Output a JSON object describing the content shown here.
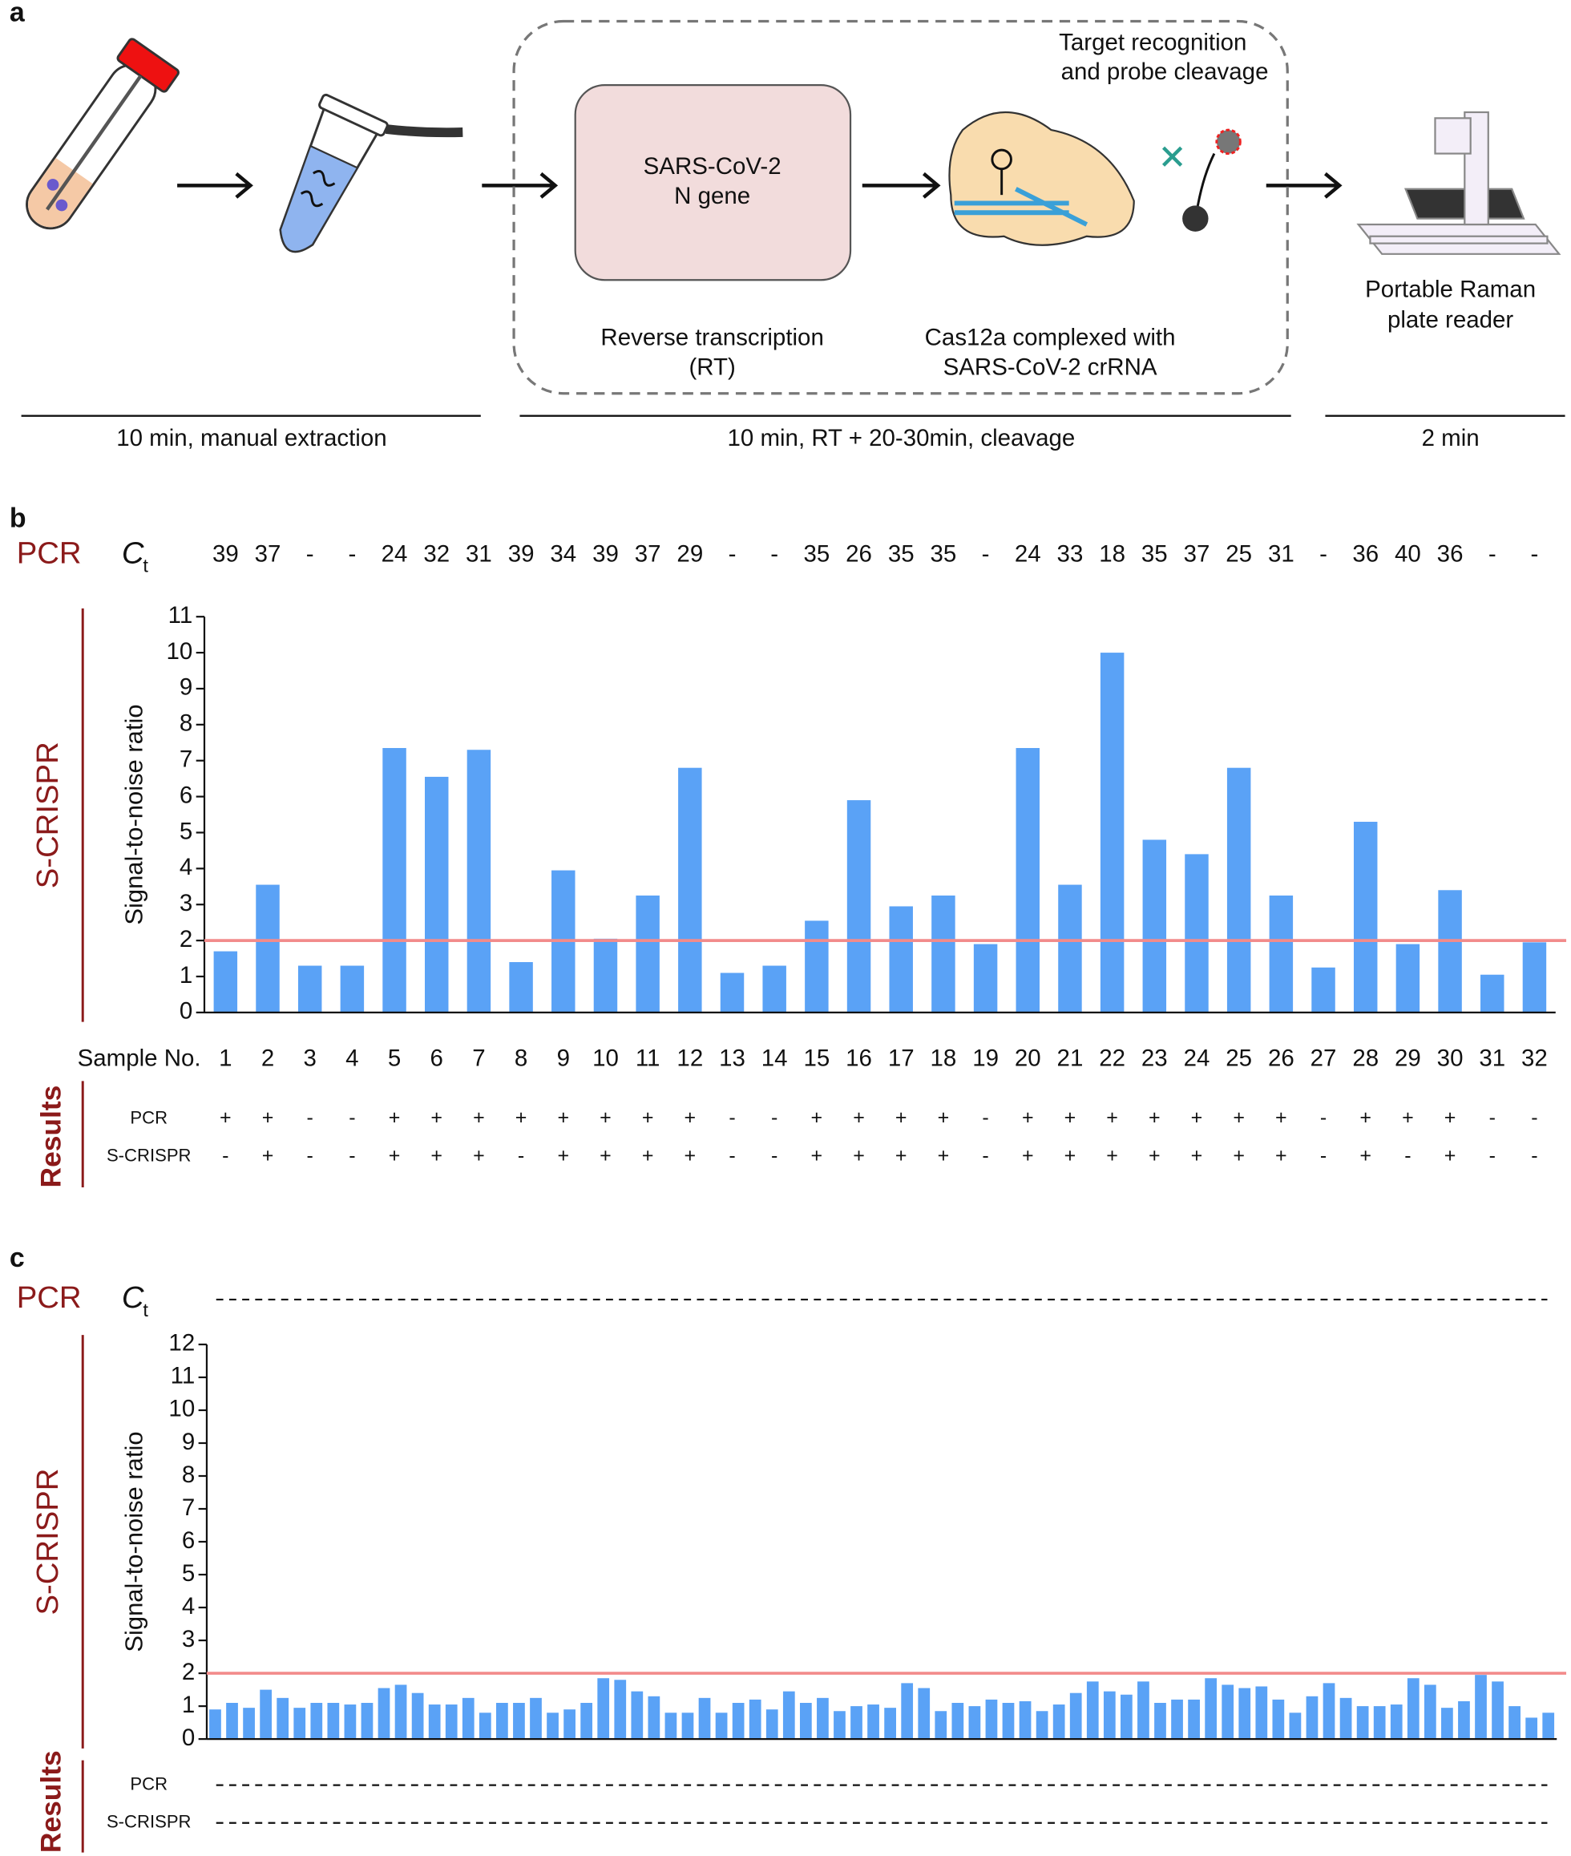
{
  "panel_a": {
    "label": "a",
    "box_text": [
      "SARS-CoV-2",
      "N gene"
    ],
    "top_note": [
      "Target recognition",
      "and probe cleavage"
    ],
    "rt_caption": [
      "Reverse transcription",
      "(RT)"
    ],
    "cas_caption": [
      "Cas12a complexed with",
      "SARS-CoV-2 crRNA"
    ],
    "reader_caption": [
      "Portable Raman",
      "plate reader"
    ],
    "timeline": [
      "10 min, manual extraction",
      "10 min, RT + 20-30min, cleavage",
      "2 min"
    ]
  },
  "chart_data": [
    {
      "type": "bar",
      "panel_label": "b",
      "row_label": "PCR",
      "ct_label": "C",
      "ct_subscript": "t",
      "ct_values": [
        "39",
        "37",
        "-",
        "-",
        "24",
        "32",
        "31",
        "39",
        "34",
        "39",
        "37",
        "29",
        "-",
        "-",
        "35",
        "26",
        "35",
        "35",
        "-",
        "24",
        "33",
        "18",
        "35",
        "37",
        "25",
        "31",
        "-",
        "36",
        "40",
        "36",
        "-",
        "-"
      ],
      "method_label": "S-CRISPR",
      "ylabel": "Signal-to-noise ratio",
      "xlabel": "Sample No.",
      "categories": [
        "1",
        "2",
        "3",
        "4",
        "5",
        "6",
        "7",
        "8",
        "9",
        "10",
        "11",
        "12",
        "13",
        "14",
        "15",
        "16",
        "17",
        "18",
        "19",
        "20",
        "21",
        "22",
        "23",
        "24",
        "25",
        "26",
        "27",
        "28",
        "29",
        "30",
        "31",
        "32"
      ],
      "values": [
        1.7,
        3.55,
        1.3,
        1.3,
        7.35,
        6.55,
        7.3,
        1.4,
        3.95,
        2.05,
        3.25,
        6.8,
        1.1,
        1.3,
        2.55,
        5.9,
        2.95,
        3.25,
        1.9,
        7.35,
        3.55,
        10.0,
        4.8,
        4.4,
        6.8,
        3.25,
        1.25,
        5.3,
        1.9,
        3.4,
        1.05,
        1.95
      ],
      "color": "#5aa2f6",
      "threshold": 2,
      "threshold_color": "#f28b8b",
      "ylim": [
        0,
        11
      ],
      "yticks": [
        0,
        1,
        2,
        3,
        4,
        5,
        6,
        7,
        8,
        9,
        10,
        11
      ],
      "results_label": "Results",
      "results": [
        {
          "name": "PCR",
          "values": [
            "+",
            "+",
            "-",
            "-",
            "+",
            "+",
            "+",
            "+",
            "+",
            "+",
            "+",
            "+",
            "-",
            "-",
            "+",
            "+",
            "+",
            "+",
            "-",
            "+",
            "+",
            "+",
            "+",
            "+",
            "+",
            "+",
            "-",
            "+",
            "+",
            "+",
            "-",
            "-"
          ]
        },
        {
          "name": "S-CRISPR",
          "values": [
            "-",
            "+",
            "-",
            "-",
            "+",
            "+",
            "+",
            "-",
            "+",
            "+",
            "+",
            "+",
            "-",
            "-",
            "+",
            "+",
            "+",
            "+",
            "-",
            "+",
            "+",
            "+",
            "+",
            "+",
            "+",
            "+",
            "-",
            "+",
            "-",
            "+",
            "-",
            "-"
          ]
        }
      ]
    },
    {
      "type": "bar",
      "panel_label": "c",
      "row_label": "PCR",
      "ct_label": "C",
      "ct_subscript": "t",
      "method_label": "S-CRISPR",
      "ylabel": "Signal-to-noise ratio",
      "values": [
        0.9,
        1.1,
        0.95,
        1.5,
        1.25,
        0.95,
        1.1,
        1.1,
        1.05,
        1.1,
        1.55,
        1.65,
        1.4,
        1.05,
        1.05,
        1.25,
        0.8,
        1.1,
        1.1,
        1.25,
        0.8,
        0.9,
        1.1,
        1.85,
        1.8,
        1.45,
        1.3,
        0.8,
        0.8,
        1.25,
        0.8,
        1.1,
        1.2,
        0.9,
        1.45,
        1.1,
        1.25,
        0.85,
        1.0,
        1.05,
        0.95,
        1.7,
        1.55,
        0.85,
        1.1,
        1.0,
        1.2,
        1.1,
        1.15,
        0.85,
        1.05,
        1.4,
        1.75,
        1.45,
        1.35,
        1.75,
        1.1,
        1.2,
        1.2,
        1.85,
        1.65,
        1.55,
        1.6,
        1.2,
        0.8,
        1.3,
        1.7,
        1.25,
        1.0,
        1.0,
        1.05,
        1.85,
        1.65,
        0.95,
        1.15,
        1.95,
        1.75,
        1.0,
        0.65,
        0.8
      ],
      "color": "#5aa2f6",
      "threshold": 2,
      "threshold_color": "#f28b8b",
      "ylim": [
        0,
        12
      ],
      "yticks": [
        0,
        1,
        2,
        3,
        4,
        5,
        6,
        7,
        8,
        9,
        10,
        11,
        12
      ],
      "results_label": "Results",
      "results": [
        {
          "name": "PCR"
        },
        {
          "name": "S-CRISPR"
        }
      ]
    }
  ]
}
